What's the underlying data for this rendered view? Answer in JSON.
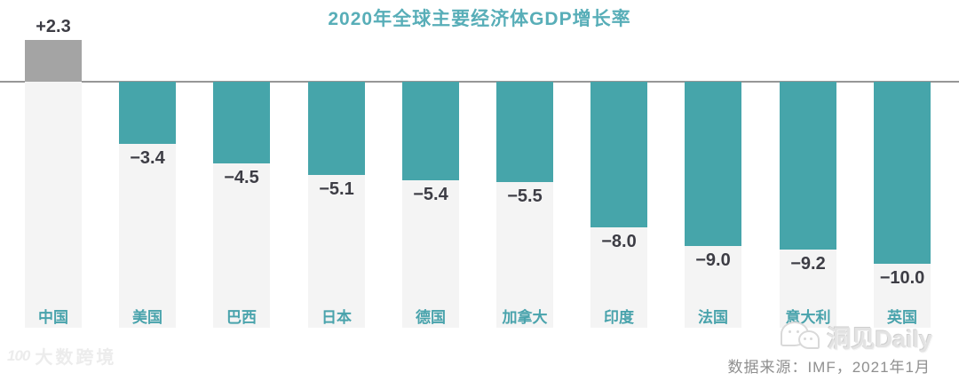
{
  "chart_data": {
    "type": "bar",
    "title": "2020年全球主要经济体GDP增长率",
    "categories": [
      "中国",
      "美国",
      "巴西",
      "日本",
      "德国",
      "加拿大",
      "印度",
      "法国",
      "意大利",
      "英国"
    ],
    "values": [
      2.3,
      -3.4,
      -4.5,
      -5.1,
      -5.4,
      -5.5,
      -8.0,
      -9.0,
      -9.2,
      -10.0
    ],
    "value_labels": [
      "+2.3",
      "−3.4",
      "−4.5",
      "−5.1",
      "−5.4",
      "−5.5",
      "−8.0",
      "−9.0",
      "−9.2",
      "−10.0"
    ],
    "xlabel": "",
    "ylabel": "",
    "ylim": [
      -10.5,
      2.5
    ],
    "grid": false,
    "legend": false,
    "baseline": 0,
    "colors": {
      "positive_bar": "#a4a4a4",
      "negative_bar": "#46a5aa",
      "column_background": "#f4f4f4",
      "baseline_line": "#979797",
      "title_text": "#58aeb8",
      "category_text": "#49a3ac",
      "value_text": "#3d3d45"
    }
  },
  "watermarks": {
    "left_logo": "100",
    "left_text": "大数跨境",
    "right_text": "洞见Daily"
  },
  "source_text": "数据来源：IMF，2021年1月"
}
